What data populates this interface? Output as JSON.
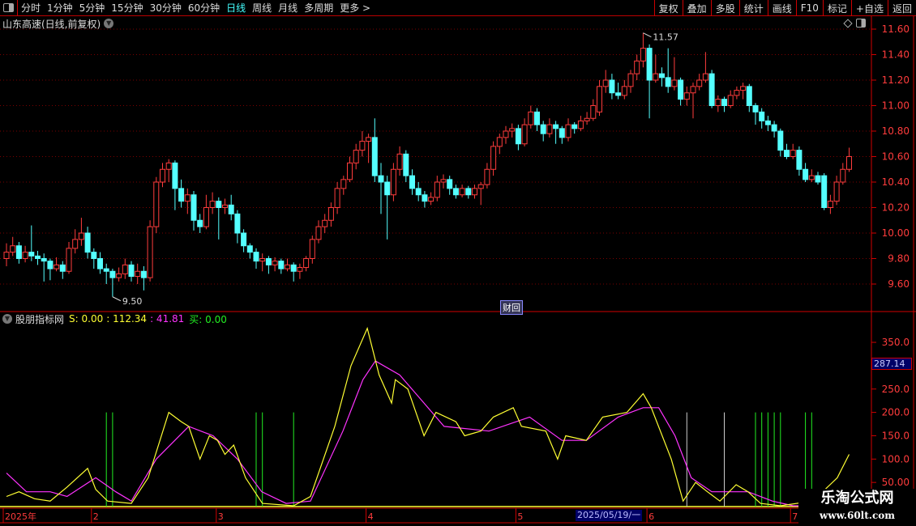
{
  "toolbar": {
    "periods": [
      "分时",
      "1分钟",
      "5分钟",
      "15分钟",
      "30分钟",
      "60分钟",
      "日线",
      "周线",
      "月线",
      "多周期",
      "更多 >"
    ],
    "active": "日线",
    "tools": [
      "复权",
      "叠加",
      "多股",
      "统计",
      "画线",
      "F10",
      "标记",
      "+自选",
      "返回"
    ]
  },
  "stock": {
    "title": "山东高速(日线,前复权)"
  },
  "colors": {
    "up": "#ff3c3c",
    "down": "#54ffff",
    "grid": "#7a0000",
    "axis": "#d00000",
    "ma1": "#ffff33",
    "ma2": "#ff33ff",
    "buy": "#22ee22",
    "sell": "#cccccc"
  },
  "price_axis": {
    "ticks": [
      "11.60",
      "11.40",
      "11.20",
      "11.00",
      "10.80",
      "10.60",
      "10.40",
      "10.20",
      "10.00",
      "9.80",
      "9.60"
    ],
    "max_label": "11.57",
    "min_label": "9.50",
    "finance_tag": "财"
  },
  "candles": [
    [
      9.8,
      9.92,
      9.74,
      9.85
    ],
    [
      9.85,
      9.97,
      9.82,
      9.9
    ],
    [
      9.9,
      9.93,
      9.76,
      9.8
    ],
    [
      9.8,
      9.9,
      9.77,
      9.85
    ],
    [
      9.85,
      10.06,
      9.78,
      9.82
    ],
    [
      9.82,
      9.86,
      9.75,
      9.8
    ],
    [
      9.8,
      9.84,
      9.62,
      9.78
    ],
    [
      9.78,
      9.8,
      9.63,
      9.72
    ],
    [
      9.72,
      9.81,
      9.7,
      9.75
    ],
    [
      9.75,
      9.78,
      9.64,
      9.7
    ],
    [
      9.7,
      9.93,
      9.68,
      9.88
    ],
    [
      9.88,
      10.03,
      9.84,
      9.95
    ],
    [
      9.95,
      10.12,
      9.9,
      10.0
    ],
    [
      10.0,
      10.05,
      9.8,
      9.85
    ],
    [
      9.85,
      9.88,
      9.72,
      9.8
    ],
    [
      9.8,
      9.85,
      9.68,
      9.72
    ],
    [
      9.72,
      9.76,
      9.6,
      9.7
    ],
    [
      9.7,
      9.72,
      9.5,
      9.65
    ],
    [
      9.65,
      9.73,
      9.62,
      9.68
    ],
    [
      9.68,
      9.8,
      9.64,
      9.75
    ],
    [
      9.75,
      9.78,
      9.62,
      9.66
    ],
    [
      9.66,
      9.76,
      9.6,
      9.7
    ],
    [
      9.7,
      9.74,
      9.55,
      9.65
    ],
    [
      9.65,
      10.1,
      9.62,
      10.05
    ],
    [
      10.05,
      10.44,
      10.0,
      10.4
    ],
    [
      10.4,
      10.55,
      10.36,
      10.5
    ],
    [
      10.5,
      10.58,
      10.4,
      10.55
    ],
    [
      10.55,
      10.57,
      10.18,
      10.35
    ],
    [
      10.35,
      10.42,
      10.2,
      10.25
    ],
    [
      10.25,
      10.35,
      10.15,
      10.3
    ],
    [
      10.3,
      10.33,
      10.02,
      10.1
    ],
    [
      10.1,
      10.15,
      10.0,
      10.05
    ],
    [
      10.05,
      10.3,
      10.03,
      10.2
    ],
    [
      10.2,
      10.32,
      10.15,
      10.25
    ],
    [
      10.25,
      10.28,
      9.95,
      10.2
    ],
    [
      10.2,
      10.27,
      10.15,
      10.22
    ],
    [
      10.22,
      10.3,
      10.1,
      10.15
    ],
    [
      10.15,
      10.18,
      9.92,
      10.0
    ],
    [
      10.0,
      10.03,
      9.85,
      9.9
    ],
    [
      9.9,
      9.92,
      9.8,
      9.85
    ],
    [
      9.85,
      9.88,
      9.72,
      9.78
    ],
    [
      9.78,
      9.84,
      9.7,
      9.8
    ],
    [
      9.8,
      9.82,
      9.68,
      9.75
    ],
    [
      9.75,
      9.81,
      9.7,
      9.78
    ],
    [
      9.78,
      9.8,
      9.68,
      9.72
    ],
    [
      9.72,
      9.8,
      9.7,
      9.75
    ],
    [
      9.75,
      9.77,
      9.62,
      9.7
    ],
    [
      9.7,
      9.76,
      9.64,
      9.73
    ],
    [
      9.73,
      9.82,
      9.7,
      9.8
    ],
    [
      9.8,
      9.98,
      9.76,
      9.95
    ],
    [
      9.95,
      10.1,
      9.92,
      10.05
    ],
    [
      10.05,
      10.15,
      10.0,
      10.1
    ],
    [
      10.1,
      10.24,
      10.05,
      10.2
    ],
    [
      10.2,
      10.4,
      10.15,
      10.35
    ],
    [
      10.35,
      10.45,
      10.3,
      10.42
    ],
    [
      10.42,
      10.6,
      10.4,
      10.55
    ],
    [
      10.55,
      10.7,
      10.5,
      10.65
    ],
    [
      10.65,
      10.8,
      10.6,
      10.72
    ],
    [
      10.72,
      10.78,
      10.55,
      10.75
    ],
    [
      10.75,
      10.9,
      10.4,
      10.45
    ],
    [
      10.45,
      10.55,
      10.15,
      10.4
    ],
    [
      10.4,
      10.45,
      9.95,
      10.3
    ],
    [
      10.3,
      10.55,
      10.25,
      10.5
    ],
    [
      10.5,
      10.68,
      10.45,
      10.62
    ],
    [
      10.62,
      10.65,
      10.4,
      10.45
    ],
    [
      10.45,
      10.5,
      10.3,
      10.35
    ],
    [
      10.35,
      10.4,
      10.25,
      10.3
    ],
    [
      10.3,
      10.33,
      10.2,
      10.25
    ],
    [
      10.25,
      10.32,
      10.22,
      10.28
    ],
    [
      10.28,
      10.45,
      10.25,
      10.4
    ],
    [
      10.4,
      10.46,
      10.35,
      10.42
    ],
    [
      10.42,
      10.45,
      10.3,
      10.35
    ],
    [
      10.35,
      10.38,
      10.27,
      10.3
    ],
    [
      10.3,
      10.38,
      10.28,
      10.35
    ],
    [
      10.35,
      10.37,
      10.27,
      10.3
    ],
    [
      10.3,
      10.38,
      10.27,
      10.35
    ],
    [
      10.35,
      10.4,
      10.22,
      10.38
    ],
    [
      10.38,
      10.55,
      10.35,
      10.5
    ],
    [
      10.5,
      10.72,
      10.45,
      10.68
    ],
    [
      10.68,
      10.78,
      10.62,
      10.75
    ],
    [
      10.75,
      10.84,
      10.7,
      10.8
    ],
    [
      10.8,
      10.86,
      10.75,
      10.82
    ],
    [
      10.82,
      10.85,
      10.65,
      10.7
    ],
    [
      10.7,
      10.9,
      10.68,
      10.85
    ],
    [
      10.85,
      11.0,
      10.82,
      10.95
    ],
    [
      10.95,
      10.98,
      10.8,
      10.85
    ],
    [
      10.85,
      10.88,
      10.72,
      10.78
    ],
    [
      10.78,
      10.9,
      10.75,
      10.85
    ],
    [
      10.85,
      10.88,
      10.7,
      10.82
    ],
    [
      10.82,
      10.84,
      10.7,
      10.75
    ],
    [
      10.75,
      10.9,
      10.72,
      10.85
    ],
    [
      10.85,
      10.87,
      10.78,
      10.82
    ],
    [
      10.82,
      10.92,
      10.8,
      10.88
    ],
    [
      10.88,
      10.95,
      10.85,
      10.9
    ],
    [
      10.9,
      11.05,
      10.88,
      11.0
    ],
    [
      10.95,
      11.2,
      10.92,
      11.15
    ],
    [
      11.15,
      11.28,
      11.1,
      11.2
    ],
    [
      11.2,
      11.25,
      11.05,
      11.1
    ],
    [
      11.1,
      11.18,
      11.05,
      11.08
    ],
    [
      11.08,
      11.2,
      11.05,
      11.15
    ],
    [
      11.15,
      11.28,
      11.1,
      11.25
    ],
    [
      11.25,
      11.4,
      11.2,
      11.35
    ],
    [
      11.35,
      11.57,
      11.3,
      11.45
    ],
    [
      11.45,
      11.48,
      10.9,
      11.2
    ],
    [
      11.2,
      11.4,
      11.18,
      11.25
    ],
    [
      11.25,
      11.3,
      11.15,
      11.22
    ],
    [
      11.22,
      11.45,
      11.1,
      11.15
    ],
    [
      11.15,
      11.38,
      11.12,
      11.2
    ],
    [
      11.2,
      11.22,
      11.0,
      11.05
    ],
    [
      11.05,
      11.15,
      11.0,
      11.1
    ],
    [
      11.1,
      11.18,
      10.9,
      11.15
    ],
    [
      11.15,
      11.25,
      11.12,
      11.2
    ],
    [
      11.2,
      11.42,
      11.18,
      11.25
    ],
    [
      11.25,
      11.28,
      10.98,
      11.0
    ],
    [
      11.0,
      11.08,
      10.95,
      11.05
    ],
    [
      11.05,
      11.07,
      10.95,
      11.0
    ],
    [
      11.0,
      11.12,
      10.98,
      11.08
    ],
    [
      11.08,
      11.15,
      11.05,
      11.12
    ],
    [
      11.12,
      11.18,
      11.05,
      11.15
    ],
    [
      11.15,
      11.17,
      10.95,
      11.0
    ],
    [
      11.0,
      11.02,
      10.85,
      10.95
    ],
    [
      10.95,
      10.98,
      10.82,
      10.88
    ],
    [
      10.88,
      10.92,
      10.8,
      10.85
    ],
    [
      10.85,
      10.88,
      10.75,
      10.8
    ],
    [
      10.8,
      10.82,
      10.6,
      10.65
    ],
    [
      10.65,
      10.7,
      10.58,
      10.6
    ],
    [
      10.6,
      10.7,
      10.58,
      10.65
    ],
    [
      10.65,
      10.68,
      10.45,
      10.5
    ],
    [
      10.5,
      10.55,
      10.4,
      10.42
    ],
    [
      10.42,
      10.5,
      10.4,
      10.45
    ],
    [
      10.45,
      10.48,
      10.38,
      10.4
    ],
    [
      10.45,
      10.47,
      10.18,
      10.2
    ],
    [
      10.2,
      10.3,
      10.15,
      10.25
    ],
    [
      10.25,
      10.45,
      10.22,
      10.4
    ],
    [
      10.4,
      10.55,
      10.38,
      10.5
    ],
    [
      10.5,
      10.67,
      10.48,
      10.6
    ]
  ],
  "indicator": {
    "name": "股朋指标网",
    "s_label": "S: 0.00",
    "v1": ": 112.34",
    "v2": ": 41.81",
    "buy_label": "买: 0.00",
    "ticks": [
      "350.0",
      "250.0",
      "200.0",
      "150.0",
      "100.0",
      "50.00"
    ],
    "tick_values": [
      350,
      250,
      200,
      150,
      100,
      50
    ],
    "cursor_value": "287.14",
    "yellow": [
      [
        0,
        20
      ],
      [
        2,
        30
      ],
      [
        4.5,
        15
      ],
      [
        7,
        10
      ],
      [
        9.7,
        40
      ],
      [
        13,
        80
      ],
      [
        14.3,
        35
      ],
      [
        16.2,
        10
      ],
      [
        20,
        5
      ],
      [
        22.7,
        60
      ],
      [
        26,
        200
      ],
      [
        28,
        180
      ],
      [
        29.2,
        170
      ],
      [
        31,
        100
      ],
      [
        32.5,
        150
      ],
      [
        33.8,
        140
      ],
      [
        35,
        110
      ],
      [
        36.4,
        130
      ],
      [
        38.3,
        60
      ],
      [
        41,
        5
      ],
      [
        46,
        0
      ],
      [
        48.7,
        20
      ],
      [
        52.6,
        170
      ],
      [
        55.2,
        300
      ],
      [
        57.8,
        380
      ],
      [
        59.7,
        280
      ],
      [
        61.7,
        220
      ],
      [
        62.3,
        270
      ],
      [
        64.3,
        250
      ],
      [
        66.9,
        150
      ],
      [
        68.8,
        200
      ],
      [
        72,
        180
      ],
      [
        73.4,
        150
      ],
      [
        76,
        160
      ],
      [
        78,
        190
      ],
      [
        81.2,
        210
      ],
      [
        82.5,
        170
      ],
      [
        86.4,
        160
      ],
      [
        88.3,
        100
      ],
      [
        89.6,
        150
      ],
      [
        92.9,
        140
      ],
      [
        95.5,
        190
      ],
      [
        99.4,
        200
      ],
      [
        102,
        240
      ],
      [
        103.3,
        210
      ],
      [
        106.5,
        100
      ],
      [
        108.4,
        10
      ],
      [
        110.4,
        50
      ],
      [
        112.3,
        30
      ],
      [
        114.3,
        10
      ],
      [
        116.9,
        45
      ],
      [
        118.8,
        30
      ],
      [
        120.8,
        5
      ],
      [
        124,
        0
      ],
      [
        129.2,
        10
      ],
      [
        133.1,
        60
      ],
      [
        135,
        110
      ]
    ],
    "magenta": [
      [
        0,
        70
      ],
      [
        3.2,
        30
      ],
      [
        7,
        30
      ],
      [
        9.7,
        20
      ],
      [
        14.3,
        60
      ],
      [
        17.5,
        30
      ],
      [
        20,
        10
      ],
      [
        24,
        100
      ],
      [
        29.2,
        170
      ],
      [
        33.1,
        150
      ],
      [
        37,
        100
      ],
      [
        40.9,
        30
      ],
      [
        44.8,
        5
      ],
      [
        48.7,
        10
      ],
      [
        53.9,
        160
      ],
      [
        57.1,
        270
      ],
      [
        59.1,
        310
      ],
      [
        63,
        280
      ],
      [
        66.9,
        220
      ],
      [
        70.1,
        170
      ],
      [
        77.3,
        160
      ],
      [
        83.8,
        190
      ],
      [
        89,
        140
      ],
      [
        92.9,
        140
      ],
      [
        98,
        190
      ],
      [
        102,
        210
      ],
      [
        104.5,
        210
      ],
      [
        107.1,
        150
      ],
      [
        109.7,
        60
      ],
      [
        113,
        30
      ],
      [
        118.8,
        30
      ],
      [
        122.7,
        10
      ],
      [
        126,
        0
      ],
      [
        135,
        0
      ]
    ],
    "buy_signals": [
      16,
      17,
      40,
      41,
      46,
      120,
      121,
      122,
      123,
      124,
      128,
      129
    ],
    "sell_signals": [
      109,
      115
    ]
  },
  "dates": {
    "months": [
      {
        "label": "2025年",
        "i": 0
      },
      {
        "label": "2",
        "i": 14
      },
      {
        "label": "3",
        "i": 34
      },
      {
        "label": "4",
        "i": 58
      },
      {
        "label": "5",
        "i": 82
      },
      {
        "label": "6",
        "i": 103
      },
      {
        "label": "7",
        "i": 126
      }
    ],
    "cursor_date": "2025/05/19/一"
  },
  "watermark": {
    "line1": "乐淘公式网",
    "line2": "www.60lt.com"
  }
}
